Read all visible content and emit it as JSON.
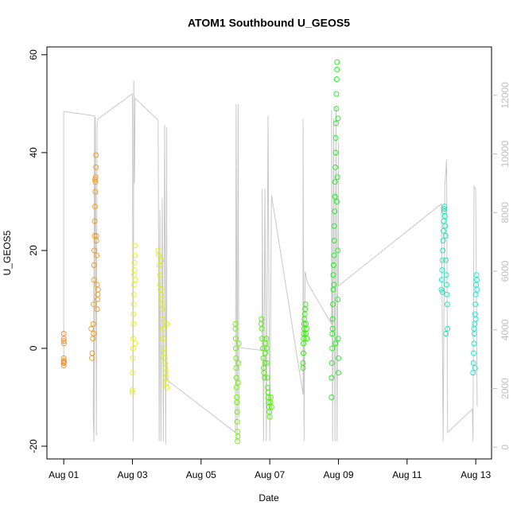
{
  "chart_data": {
    "type": "scatter",
    "title": "ATOM1 Southbound U_GEOS5",
    "x_label": "Date",
    "y_label": "U_GEOS5",
    "xlim": [
      -0.49,
      12.46
    ],
    "xticks": [
      {
        "value": 0,
        "label": "Aug 01"
      },
      {
        "value": 2,
        "label": "Aug 03"
      },
      {
        "value": 4,
        "label": "Aug 05"
      },
      {
        "value": 6,
        "label": "Aug 07"
      },
      {
        "value": 8,
        "label": "Aug 09"
      },
      {
        "value": 10,
        "label": "Aug 11"
      },
      {
        "value": 12,
        "label": "Aug 13"
      }
    ],
    "ylim": [
      -22.6,
      61.6
    ],
    "yticks": [
      -20,
      0,
      20,
      40,
      60
    ],
    "y2lim": [
      -400,
      13650
    ],
    "y2ticks": [
      0,
      2000,
      4000,
      6000,
      8000,
      10000,
      12000
    ],
    "y2_color": "#bebebe",
    "series": [
      {
        "type": "line",
        "axis": "y2",
        "color": "#c8c8c8",
        "x": [
          0,
          0,
          0.9,
          0.86,
          0.88,
          0.92,
          0.95,
          0.97,
          1.0,
          2.0,
          2.02,
          2.04,
          2.06,
          2.08,
          2.75,
          2.78,
          2.8,
          2.83,
          2.87,
          2.9,
          2.94,
          2.97,
          3.0,
          3.0,
          5.0,
          5.02,
          5.05,
          5.08,
          5.1,
          5.1,
          5.78,
          5.78,
          5.82,
          5.86,
          5.9,
          5.95,
          6.0,
          6.05,
          6.97,
          6.97,
          7.0,
          7.03,
          7.1,
          7.8,
          7.8,
          7.83,
          7.86,
          7.9,
          7.93,
          7.96,
          8.0,
          8.0,
          11.0,
          11.05,
          11.1,
          11.15,
          11.18,
          11.9,
          11.92,
          11.95,
          12.0,
          12.04
        ],
        "values": [
          2900,
          11450,
          11300,
          1000,
          190,
          11250,
          400,
          11000,
          11200,
          12050,
          200,
          12500,
          9000,
          11900,
          11150,
          200,
          8100,
          200,
          8500,
          200,
          11000,
          100,
          10900,
          2300,
          500,
          11700,
          200,
          11700,
          1000,
          3400,
          3300,
          8800,
          200,
          8800,
          200,
          11300,
          200,
          8600,
          1800,
          11200,
          200,
          6000,
          5600,
          4200,
          11500,
          200,
          11200,
          200,
          11600,
          200,
          10400,
          5500,
          8300,
          200,
          8900,
          9800,
          500,
          1300,
          200,
          8900,
          8800,
          1400
        ]
      },
      {
        "color": "#f28c1e",
        "x": [
          0,
          0,
          0,
          0,
          0,
          0,
          0,
          0,
          0.01,
          0.01
        ],
        "values": [
          -3,
          -3.5,
          -2.5,
          -2,
          1.5,
          2,
          3,
          -3,
          -2.8,
          1
        ]
      },
      {
        "color": "#f5961a",
        "x": [
          0.8,
          0.82,
          0.85,
          0.86,
          0.87,
          0.88,
          0.88,
          0.89,
          0.9,
          0.9,
          0.91,
          0.92,
          0.92,
          0.93,
          0.94,
          0.94,
          0.95,
          0.96,
          0.97,
          0.98,
          0.99,
          1.0,
          0.83,
          0.87,
          0.91,
          0.95,
          0.97
        ],
        "values": [
          4,
          -2,
          2,
          5,
          9,
          14,
          17,
          20,
          23,
          26,
          29,
          32,
          34,
          35,
          37,
          39.5,
          23,
          19,
          13,
          10,
          11,
          12,
          -1,
          3,
          34.5,
          22,
          8
        ]
      },
      {
        "color": "#e8f01a",
        "x": [
          2.0,
          2.0,
          2.01,
          2.01,
          2.02,
          2.02,
          2.03,
          2.03,
          2.04,
          2.04,
          2.05,
          2.05,
          2.06,
          2.06,
          2.07,
          2.07,
          2.08,
          2.08
        ],
        "values": [
          -9,
          -8.5,
          -5,
          -2,
          0,
          2,
          5,
          7,
          9,
          11,
          13,
          15,
          16,
          17.5,
          19,
          21,
          14,
          1
        ]
      },
      {
        "color": "#e0f000",
        "x": [
          2.75,
          2.77,
          2.78,
          2.8,
          2.8,
          2.82,
          2.83,
          2.85,
          2.86,
          2.87,
          2.88,
          2.9,
          2.9,
          2.92,
          2.93,
          2.94,
          2.95,
          2.96,
          2.97,
          2.98,
          2.99,
          3.0,
          3.0,
          2.84
        ],
        "values": [
          20,
          19,
          17,
          15,
          13,
          12,
          11,
          10,
          9,
          8,
          6,
          4,
          2,
          0,
          -1,
          -2,
          -3,
          -4,
          -5,
          -6,
          -7,
          -8,
          5,
          18
        ]
      },
      {
        "color": "#6ef000",
        "x": [
          5.0,
          5.0,
          5.01,
          5.01,
          5.02,
          5.02,
          5.03,
          5.03,
          5.04,
          5.04,
          5.05,
          5.05,
          5.06,
          5.06,
          5.07,
          5.08,
          5.09,
          5.1
        ],
        "values": [
          5,
          4,
          2,
          0,
          -2,
          -4,
          -6,
          -8,
          -10,
          -11,
          -13,
          -15,
          -17,
          -19,
          -18,
          -7,
          -3,
          1
        ]
      },
      {
        "color": "#4cf000",
        "x": [
          5.75,
          5.76,
          5.77,
          5.78,
          5.8,
          5.81,
          5.82,
          5.83,
          5.85,
          5.86,
          5.87,
          5.88,
          5.9,
          5.91,
          5.92,
          5.93,
          5.94,
          5.95,
          5.96,
          5.97,
          5.98,
          5.99,
          6.0,
          6.02,
          6.03,
          6.05
        ],
        "values": [
          5,
          6,
          4,
          2,
          0,
          -2,
          -4,
          -5,
          -6,
          -3,
          -1,
          1,
          2,
          0,
          -3,
          -6,
          -8,
          -9,
          -10,
          -11,
          -12,
          -13,
          -14,
          -11,
          -10,
          -12
        ]
      },
      {
        "color": "#2cf000",
        "x": [
          6.97,
          6.97,
          6.98,
          6.98,
          6.99,
          6.99,
          7.0,
          7.0,
          7.01,
          7.02,
          7.03,
          7.04,
          7.05,
          7.06,
          7.07,
          7.08
        ],
        "values": [
          -4,
          -3,
          -1,
          1,
          2,
          3,
          4,
          5,
          6,
          7,
          8,
          9,
          5,
          3,
          4,
          2
        ]
      },
      {
        "color": "#14f014",
        "x": [
          7.8,
          7.8,
          7.81,
          7.82,
          7.82,
          7.83,
          7.84,
          7.85,
          7.85,
          7.86,
          7.87,
          7.88,
          7.88,
          7.89,
          7.9,
          7.9,
          7.91,
          7.92,
          7.92,
          7.93,
          7.94,
          7.94,
          7.95,
          7.96,
          7.96,
          7.97,
          7.98,
          7.98,
          7.99,
          8.0,
          7.83,
          7.87,
          7.91,
          7.95,
          7.99,
          8.0
        ],
        "values": [
          -10,
          -6,
          -3,
          0,
          3,
          6,
          9,
          12,
          15,
          17,
          19,
          22,
          25,
          28,
          31,
          34,
          37,
          40,
          43,
          46,
          49,
          52,
          55,
          57,
          58.5,
          35,
          20,
          10,
          2,
          -5,
          4,
          13,
          1,
          30,
          47,
          -2
        ]
      },
      {
        "color": "#00f0b4",
        "x": [
          11.0,
          11.01,
          11.02,
          11.03,
          11.04,
          11.05,
          11.06,
          11.07,
          11.08,
          11.09,
          11.1,
          11.11,
          11.12,
          11.13,
          11.14,
          11.15,
          11.16,
          11.17,
          11.18,
          11.03,
          11.08,
          11.13
        ],
        "values": [
          12,
          14,
          16,
          18,
          20,
          22,
          24,
          26,
          28,
          29,
          27,
          25,
          23,
          18,
          15,
          13,
          11,
          9,
          4,
          11.5,
          28.5,
          3
        ]
      },
      {
        "color": "#00f0d2",
        "x": [
          11.92,
          11.93,
          11.94,
          11.95,
          11.96,
          11.97,
          11.98,
          11.99,
          12.0,
          12.01,
          12.02,
          12.03,
          12.04,
          11.95,
          12.0,
          11.98
        ],
        "values": [
          -5,
          -3,
          -1,
          1,
          3,
          5,
          7,
          9,
          11,
          13,
          15,
          14,
          12,
          4,
          6,
          -4
        ]
      }
    ]
  }
}
